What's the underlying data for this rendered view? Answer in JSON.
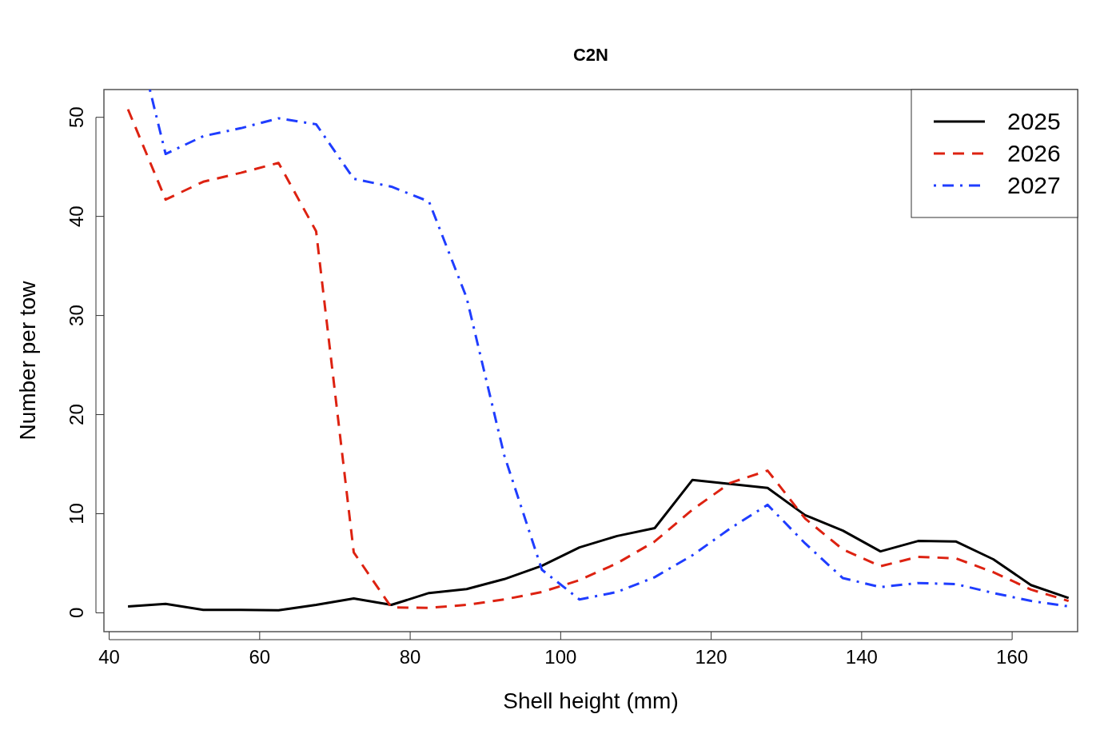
{
  "chart_data": {
    "type": "line",
    "title": "C2N",
    "xlabel": "Shell height (mm)",
    "ylabel": "Number per tow",
    "x": [
      42.5,
      47.5,
      52.5,
      57.5,
      62.5,
      67.5,
      72.5,
      77.5,
      82.5,
      87.5,
      92.5,
      97.5,
      102.5,
      107.5,
      112.5,
      117.5,
      122.5,
      127.5,
      132.5,
      137.5,
      142.5,
      147.5,
      152.5,
      157.5,
      162.5,
      167.5
    ],
    "series": [
      {
        "name": "2025",
        "color": "#000000",
        "line_style": "solid",
        "values": [
          0.65,
          0.9,
          0.3,
          0.3,
          0.25,
          0.8,
          1.45,
          0.8,
          2.0,
          2.4,
          3.4,
          4.75,
          6.6,
          7.75,
          8.55,
          13.4,
          13.0,
          12.6,
          9.85,
          8.3,
          6.2,
          7.25,
          7.2,
          5.4,
          2.8,
          1.5
        ]
      },
      {
        "name": "2026",
        "color": "#dd2211",
        "line_style": "dashed",
        "values": [
          50.8,
          41.7,
          43.5,
          44.4,
          45.4,
          38.5,
          6.1,
          0.55,
          0.5,
          0.8,
          1.35,
          2.1,
          3.3,
          5.0,
          7.2,
          10.4,
          13.1,
          14.35,
          9.5,
          6.4,
          4.7,
          5.65,
          5.5,
          4.1,
          2.35,
          1.2
        ]
      },
      {
        "name": "2027",
        "color": "#1f3dff",
        "line_style": "dashdot",
        "x": [
          45.4,
          47.5,
          52.5,
          57.5,
          62.5,
          67.5,
          72.5,
          77.5,
          82.5,
          87.5,
          92.5,
          97.5,
          102.5,
          107.5,
          112.5,
          117.5,
          122.5,
          127.5,
          132.5,
          137.5,
          142.5,
          147.5,
          152.5,
          157.5,
          162.5,
          167.5
        ],
        "values": [
          52.8,
          46.3,
          48.1,
          48.9,
          49.9,
          49.3,
          43.8,
          43.0,
          41.5,
          31.8,
          15.9,
          4.35,
          1.35,
          2.1,
          3.6,
          5.8,
          8.5,
          10.9,
          7.0,
          3.5,
          2.6,
          3.0,
          2.9,
          2.0,
          1.2,
          0.65
        ]
      }
    ],
    "xlim": [
      39.3,
      168.7
    ],
    "xticks": [
      40,
      60,
      80,
      100,
      120,
      140,
      160
    ],
    "ylim": [
      -1.9,
      52.8
    ],
    "yticks": [
      0,
      10,
      20,
      30,
      40,
      50
    ],
    "grid": false,
    "legend": "top right"
  }
}
